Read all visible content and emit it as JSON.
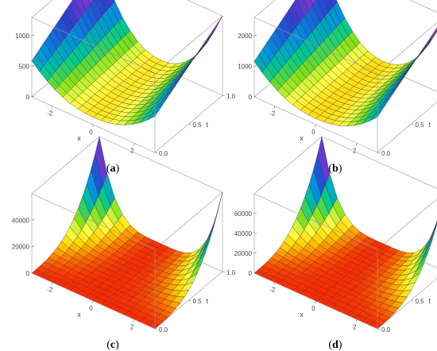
{
  "chart_data": [
    {
      "type": "surface3d",
      "panel_label": "a",
      "xlabel": "x",
      "ylabel": "t",
      "zlabel": "",
      "x_ticks": [
        "-2",
        "0",
        "2"
      ],
      "t_ticks": [
        "0.0",
        "0.5",
        "1.0"
      ],
      "z_ticks": [
        "0",
        "500",
        "1000"
      ],
      "xlim": [
        -3,
        3
      ],
      "tlim": [
        0,
        1
      ],
      "zlim": [
        0,
        1300
      ],
      "surface": {
        "base": 120,
        "edge_peak": 1300,
        "edge_shape": "cosh"
      },
      "colormap": [
        "#ff2b00",
        "#ff7f00",
        "#ffd500",
        "#ffff4d",
        "#7ee01a",
        "#00c890",
        "#0090e0",
        "#2a40d0",
        "#9b30d8",
        "#ff40ff"
      ]
    },
    {
      "type": "surface3d",
      "panel_label": "b",
      "xlabel": "x",
      "ylabel": "t",
      "zlabel": "",
      "x_ticks": [
        "-2",
        "0",
        "2"
      ],
      "t_ticks": [
        "0.0",
        "0.5",
        "1.0"
      ],
      "z_ticks": [
        "0",
        "1000",
        "2000"
      ],
      "xlim": [
        -3,
        3
      ],
      "tlim": [
        0,
        1
      ],
      "zlim": [
        0,
        2600
      ],
      "surface": {
        "base": 200,
        "edge_peak": 2600,
        "edge_shape": "cosh"
      },
      "colormap": [
        "#ff2b00",
        "#ff7f00",
        "#ffd500",
        "#ffff4d",
        "#7ee01a",
        "#00c890",
        "#0090e0",
        "#2a40d0",
        "#9b30d8",
        "#ff40ff"
      ]
    },
    {
      "type": "surface3d",
      "panel_label": "c",
      "xlabel": "x",
      "ylabel": "t",
      "zlabel": "",
      "x_ticks": [
        "-2",
        "0",
        "2"
      ],
      "t_ticks": [
        "0.0",
        "0.5",
        "1.0"
      ],
      "z_ticks": [
        "0",
        "20000",
        "40000"
      ],
      "xlim": [
        -3,
        3
      ],
      "tlim": [
        0,
        1
      ],
      "zlim": [
        0,
        60000
      ],
      "surface": {
        "base": 0,
        "edge_peak": 60000,
        "edge_shape": "steep"
      },
      "colormap": [
        "#ff2b00",
        "#ff7f00",
        "#ffd500",
        "#ffff4d",
        "#7ee01a",
        "#00c890",
        "#0090e0",
        "#2a40d0",
        "#9b30d8",
        "#ff40ff"
      ]
    },
    {
      "type": "surface3d",
      "panel_label": "d",
      "xlabel": "x",
      "ylabel": "t",
      "zlabel": "",
      "x_ticks": [
        "-2",
        "0",
        "2"
      ],
      "t_ticks": [
        "0.0",
        "0.5",
        "1.0"
      ],
      "z_ticks": [
        "0",
        "20000",
        "40000",
        "60000"
      ],
      "xlim": [
        -3,
        3
      ],
      "tlim": [
        0,
        1
      ],
      "zlim": [
        0,
        80000
      ],
      "surface": {
        "base": 0,
        "edge_peak": 80000,
        "edge_shape": "steep"
      },
      "colormap": [
        "#ff2b00",
        "#ff7f00",
        "#ffd500",
        "#ffff4d",
        "#7ee01a",
        "#00c890",
        "#0090e0",
        "#2a40d0",
        "#9b30d8",
        "#ff40ff"
      ]
    }
  ]
}
